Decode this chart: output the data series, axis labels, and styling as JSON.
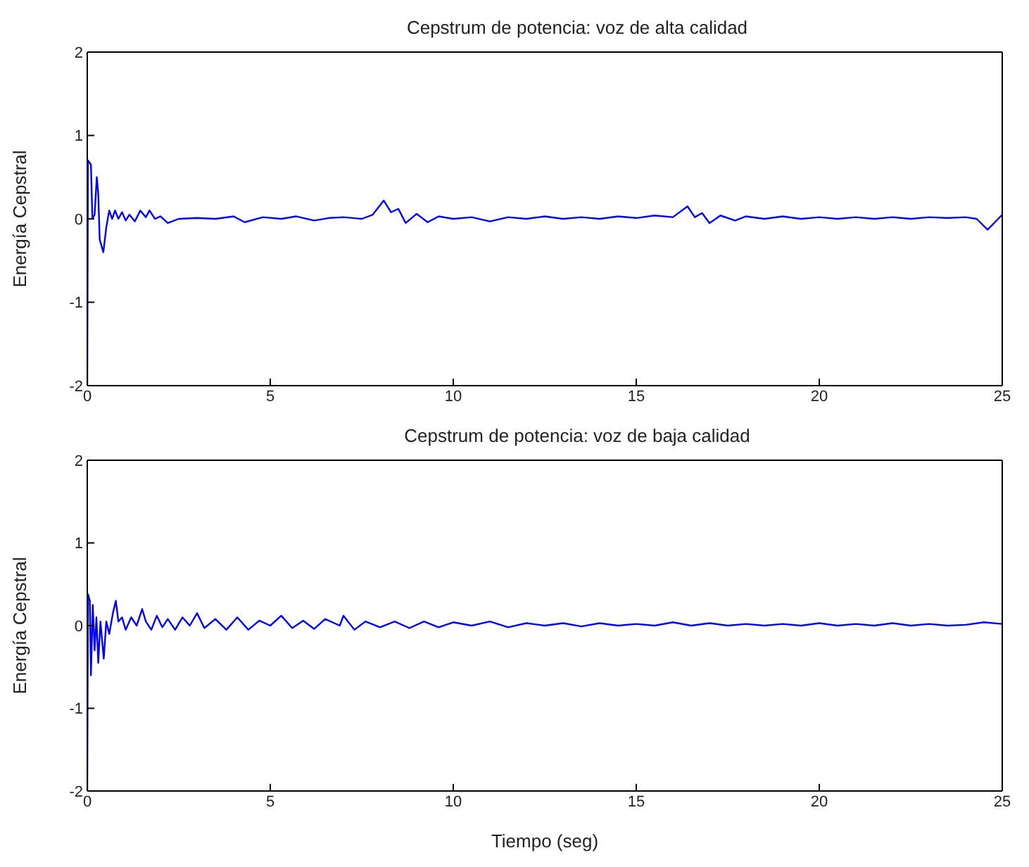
{
  "chart_data": [
    {
      "type": "line",
      "title": "Cepstrum de potencia: voz de alta calidad",
      "ylabel": "Energía Cepstral",
      "xlim": [
        0,
        25
      ],
      "xticks": [
        0,
        5,
        10,
        15,
        20,
        25
      ],
      "ylim": [
        -2,
        2
      ],
      "yticks": [
        -2,
        -1,
        0,
        1,
        2
      ],
      "x": [
        0,
        0.02,
        0.1,
        0.14,
        0.2,
        0.26,
        0.3,
        0.34,
        0.44,
        0.52,
        0.6,
        0.68,
        0.76,
        0.85,
        0.95,
        1.05,
        1.15,
        1.3,
        1.45,
        1.6,
        1.7,
        1.85,
        2.0,
        2.2,
        2.5,
        3,
        3.5,
        4,
        4.3,
        4.8,
        5.3,
        5.7,
        6.2,
        6.6,
        7.0,
        7.5,
        7.8,
        8.1,
        8.3,
        8.5,
        8.7,
        9.0,
        9.3,
        9.6,
        10,
        10.5,
        11,
        11.5,
        12,
        12.5,
        13,
        13.5,
        14,
        14.5,
        15,
        15.5,
        16,
        16.4,
        16.6,
        16.8,
        17.0,
        17.3,
        17.7,
        18,
        18.5,
        19,
        19.5,
        20,
        20.5,
        21,
        21.5,
        22,
        22.5,
        23,
        23.5,
        24,
        24.3,
        24.6,
        24.8,
        25
      ],
      "series": [
        {
          "color": "#0000ff",
          "values": [
            -2,
            0.7,
            0.65,
            0,
            0.05,
            0.5,
            0.3,
            -0.25,
            -0.4,
            -0.1,
            0.1,
            0,
            0.1,
            0,
            0.08,
            -0.02,
            0.05,
            -0.03,
            0.1,
            0.02,
            0.1,
            0,
            0.03,
            -0.05,
            0,
            0.01,
            0,
            0.03,
            -0.04,
            0.02,
            0,
            0.03,
            -0.02,
            0.01,
            0.02,
            0,
            0.05,
            0.22,
            0.08,
            0.12,
            -0.05,
            0.06,
            -0.04,
            0.03,
            0,
            0.02,
            -0.03,
            0.02,
            0,
            0.03,
            0,
            0.02,
            0,
            0.03,
            0.01,
            0.04,
            0.02,
            0.15,
            0.02,
            0.07,
            -0.05,
            0.04,
            -0.02,
            0.03,
            0,
            0.03,
            0,
            0.02,
            0,
            0.02,
            0,
            0.02,
            0,
            0.02,
            0.01,
            0.02,
            0,
            -0.13,
            -0.04,
            0.05
          ]
        }
      ]
    },
    {
      "type": "line",
      "title": "Cepstrum de potencia: voz de baja calidad",
      "xlabel": "Tiempo (seg)",
      "ylabel": "Energía Cepstral",
      "xlim": [
        0,
        25
      ],
      "xticks": [
        0,
        5,
        10,
        15,
        20,
        25
      ],
      "ylim": [
        -2,
        2
      ],
      "yticks": [
        -2,
        -1,
        0,
        1,
        2
      ],
      "x": [
        0,
        0.02,
        0.07,
        0.1,
        0.15,
        0.2,
        0.25,
        0.3,
        0.36,
        0.45,
        0.52,
        0.6,
        0.7,
        0.78,
        0.85,
        0.95,
        1.05,
        1.2,
        1.35,
        1.5,
        1.6,
        1.75,
        1.9,
        2.05,
        2.2,
        2.4,
        2.6,
        2.8,
        3.0,
        3.2,
        3.5,
        3.8,
        4.1,
        4.4,
        4.7,
        5.0,
        5.3,
        5.6,
        5.9,
        6.2,
        6.5,
        6.9,
        7.0,
        7.3,
        7.6,
        8.0,
        8.4,
        8.8,
        9.2,
        9.6,
        10,
        10.5,
        11,
        11.5,
        12,
        12.5,
        13,
        13.5,
        14,
        14.5,
        15,
        15.5,
        16,
        16.5,
        17,
        17.5,
        18,
        18.5,
        19,
        19.5,
        20,
        20.5,
        21,
        21.5,
        22,
        22.5,
        23,
        23.5,
        24,
        24.5,
        25
      ],
      "series": [
        {
          "color": "#0000ff",
          "values": [
            -2,
            0.38,
            0.3,
            -0.6,
            0.25,
            -0.3,
            0.1,
            -0.45,
            0.05,
            -0.4,
            0.05,
            -0.1,
            0.15,
            0.3,
            0.05,
            0.1,
            -0.05,
            0.1,
            0,
            0.2,
            0.05,
            -0.05,
            0.12,
            -0.02,
            0.08,
            -0.05,
            0.1,
            0,
            0.15,
            -0.03,
            0.08,
            -0.05,
            0.1,
            -0.05,
            0.06,
            0,
            0.12,
            -0.03,
            0.06,
            -0.04,
            0.08,
            0,
            0.12,
            -0.05,
            0.05,
            -0.02,
            0.05,
            -0.03,
            0.05,
            -0.02,
            0.04,
            0,
            0.05,
            -0.02,
            0.03,
            0,
            0.03,
            -0.01,
            0.03,
            0,
            0.02,
            0,
            0.04,
            0,
            0.03,
            0,
            0.02,
            0,
            0.02,
            0,
            0.03,
            0,
            0.02,
            0,
            0.03,
            0,
            0.02,
            0,
            0.01,
            0.04,
            0.02
          ]
        }
      ]
    }
  ]
}
